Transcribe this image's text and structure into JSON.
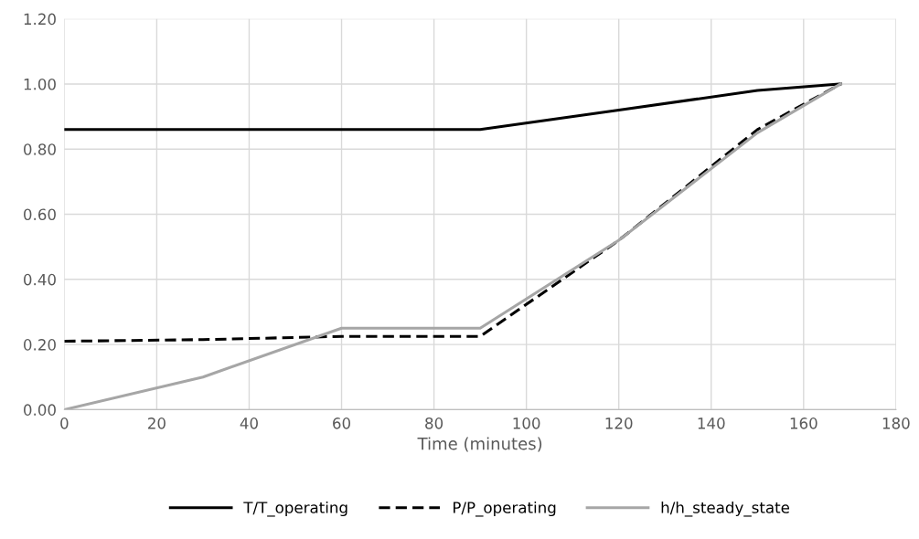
{
  "chart_data": {
    "type": "line",
    "xlabel": "Time (minutes)",
    "x": [
      0,
      30,
      60,
      90,
      120,
      150,
      168
    ],
    "series": [
      {
        "name": "T/T_operating",
        "color": "#000000",
        "line_style": "solid",
        "values": [
          0.86,
          0.86,
          0.86,
          0.86,
          0.92,
          0.98,
          1.0
        ]
      },
      {
        "name": "P/P_operating",
        "color": "#000000",
        "line_style": "dashed",
        "values": [
          0.21,
          0.215,
          0.225,
          0.225,
          0.52,
          0.86,
          1.0
        ]
      },
      {
        "name": "h/h_steady_state",
        "color": "#a6a6a6",
        "line_style": "solid",
        "values": [
          0.0,
          0.1,
          0.25,
          0.25,
          0.52,
          0.85,
          1.0
        ]
      }
    ],
    "xlim": [
      0,
      180
    ],
    "xticks": [
      0,
      20,
      40,
      60,
      80,
      100,
      120,
      140,
      160,
      180
    ],
    "ylim": [
      0,
      1.2
    ],
    "yticks": [
      {
        "value": 0,
        "label": "0.00"
      },
      {
        "value": 0.2,
        "label": "0.20"
      },
      {
        "value": 0.4,
        "label": "0.40"
      },
      {
        "value": 0.6,
        "label": "0.60"
      },
      {
        "value": 0.8,
        "label": "0.80"
      },
      {
        "value": 1.0,
        "label": "1.00"
      },
      {
        "value": 1.2,
        "label": "1.20"
      }
    ],
    "grid": true,
    "legend": "bottom",
    "marker": "none"
  }
}
